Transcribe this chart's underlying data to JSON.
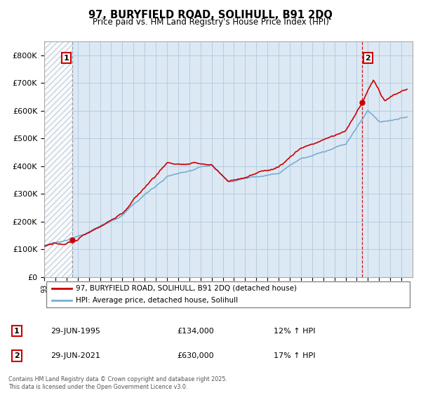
{
  "title": "97, BURYFIELD ROAD, SOLIHULL, B91 2DQ",
  "subtitle": "Price paid vs. HM Land Registry's House Price Index (HPI)",
  "ylim": [
    0,
    850000
  ],
  "yticks": [
    0,
    100000,
    200000,
    300000,
    400000,
    500000,
    600000,
    700000,
    800000
  ],
  "ytick_labels": [
    "£0",
    "£100K",
    "£200K",
    "£300K",
    "£400K",
    "£500K",
    "£600K",
    "£700K",
    "£800K"
  ],
  "x_start_year": 1993,
  "x_end_year": 2026,
  "marker1_year": 1995.5,
  "marker1_price": 134000,
  "marker1_date": "29-JUN-1995",
  "marker1_pct": "12%",
  "marker2_year": 2021.5,
  "marker2_price": 630000,
  "marker2_date": "29-JUN-2021",
  "marker2_pct": "17%",
  "legend_label1": "97, BURYFIELD ROAD, SOLIHULL, B91 2DQ (detached house)",
  "legend_label2": "HPI: Average price, detached house, Solihull",
  "footer": "Contains HM Land Registry data © Crown copyright and database right 2025.\nThis data is licensed under the Open Government Licence v3.0.",
  "line_color_red": "#cc0000",
  "line_color_blue": "#7aadcf",
  "plot_bg_color": "#dce9f5",
  "marker_color": "#cc0000",
  "vline1_color": "#888888",
  "vline2_color": "#cc0000",
  "hatch_color": "#c0ccd8",
  "grid_color": "#b8cfe0",
  "annotation_box_color": "#cc0000"
}
